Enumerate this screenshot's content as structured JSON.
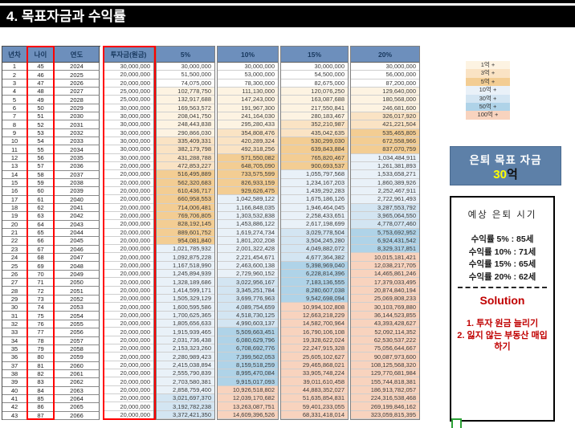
{
  "title": "4. 목표자금과 수익률",
  "table": {
    "left_headers": [
      "년차",
      "나이",
      "연도"
    ],
    "main_headers": [
      "투자금(원금)",
      "5%",
      "10%",
      "15%",
      "20%"
    ],
    "rows": [
      [
        "1",
        "45",
        "2024",
        "30,000,000",
        "30,000,000",
        "30,000,000",
        "30,000,000",
        "30,000,000"
      ],
      [
        "2",
        "46",
        "2025",
        "20,000,000",
        "51,500,000",
        "53,000,000",
        "54,500,000",
        "56,000,000"
      ],
      [
        "3",
        "47",
        "2026",
        "20,000,000",
        "74,075,000",
        "78,300,000",
        "82,675,000",
        "87,200,000"
      ],
      [
        "4",
        "48",
        "2027",
        "25,000,000",
        "102,778,750",
        "111,130,000",
        "120,076,250",
        "129,640,000"
      ],
      [
        "5",
        "49",
        "2028",
        "25,000,000",
        "132,917,688",
        "147,243,000",
        "163,087,688",
        "180,568,000"
      ],
      [
        "6",
        "50",
        "2029",
        "30,000,000",
        "169,563,572",
        "191,967,300",
        "217,550,841",
        "246,681,600"
      ],
      [
        "7",
        "51",
        "2030",
        "30,000,000",
        "208,041,750",
        "241,164,030",
        "280,183,467",
        "326,017,920"
      ],
      [
        "8",
        "52",
        "2031",
        "30,000,000",
        "248,443,838",
        "295,280,433",
        "352,210,987",
        "421,221,504"
      ],
      [
        "9",
        "53",
        "2032",
        "30,000,000",
        "290,866,030",
        "354,808,476",
        "435,042,635",
        "535,465,805"
      ],
      [
        "10",
        "54",
        "2033",
        "30,000,000",
        "335,409,331",
        "420,289,324",
        "530,299,030",
        "672,558,966"
      ],
      [
        "11",
        "55",
        "2034",
        "30,000,000",
        "382,179,798",
        "492,318,256",
        "639,843,884",
        "837,070,759"
      ],
      [
        "12",
        "56",
        "2035",
        "30,000,000",
        "431,288,788",
        "571,550,082",
        "765,820,467",
        "1,034,484,911"
      ],
      [
        "13",
        "57",
        "2036",
        "20,000,000",
        "472,853,227",
        "648,705,090",
        "900,693,537",
        "1,261,381,893"
      ],
      [
        "14",
        "58",
        "2037",
        "20,000,000",
        "516,495,889",
        "733,575,599",
        "1,055,797,568",
        "1,533,658,271"
      ],
      [
        "15",
        "59",
        "2038",
        "20,000,000",
        "562,320,683",
        "826,933,159",
        "1,234,167,203",
        "1,860,389,926"
      ],
      [
        "16",
        "60",
        "2039",
        "20,000,000",
        "610,436,717",
        "929,626,475",
        "1,439,292,283",
        "2,252,467,911"
      ],
      [
        "17",
        "61",
        "2040",
        "20,000,000",
        "660,958,553",
        "1,042,589,122",
        "1,675,186,126",
        "2,722,961,493"
      ],
      [
        "18",
        "62",
        "2041",
        "20,000,000",
        "714,006,481",
        "1,166,848,035",
        "1,946,464,045",
        "3,287,553,792"
      ],
      [
        "19",
        "63",
        "2042",
        "20,000,000",
        "769,706,805",
        "1,303,532,838",
        "2,258,433,651",
        "3,965,064,550"
      ],
      [
        "20",
        "64",
        "2043",
        "20,000,000",
        "828,192,145",
        "1,453,886,122",
        "2,617,198,699",
        "4,778,077,460"
      ],
      [
        "21",
        "65",
        "2044",
        "20,000,000",
        "889,601,752",
        "1,619,274,734",
        "3,029,778,504",
        "5,753,692,952"
      ],
      [
        "22",
        "66",
        "2045",
        "20,000,000",
        "954,081,840",
        "1,801,202,208",
        "3,504,245,280",
        "6,924,431,542"
      ],
      [
        "23",
        "67",
        "2046",
        "20,000,000",
        "1,021,785,932",
        "2,001,322,428",
        "4,049,882,072",
        "8,329,317,851"
      ],
      [
        "24",
        "68",
        "2047",
        "20,000,000",
        "1,092,875,228",
        "2,221,454,671",
        "4,677,364,382",
        "10,015,181,421"
      ],
      [
        "25",
        "69",
        "2048",
        "20,000,000",
        "1,167,518,990",
        "2,463,600,138",
        "5,398,969,040",
        "12,038,217,705"
      ],
      [
        "26",
        "70",
        "2049",
        "20,000,000",
        "1,245,894,939",
        "2,729,960,152",
        "6,228,814,396",
        "14,465,861,246"
      ],
      [
        "27",
        "71",
        "2050",
        "20,000,000",
        "1,328,189,686",
        "3,022,956,167",
        "7,183,136,555",
        "17,379,033,495"
      ],
      [
        "28",
        "72",
        "2051",
        "20,000,000",
        "1,414,599,171",
        "3,345,251,784",
        "8,280,607,038",
        "20,874,840,194"
      ],
      [
        "29",
        "73",
        "2052",
        "20,000,000",
        "1,505,329,129",
        "3,699,776,963",
        "9,542,698,094",
        "25,069,808,233"
      ],
      [
        "30",
        "74",
        "2053",
        "20,000,000",
        "1,600,595,586",
        "4,089,754,659",
        "10,994,102,808",
        "30,103,769,880"
      ],
      [
        "31",
        "75",
        "2054",
        "20,000,000",
        "1,700,625,365",
        "4,518,730,125",
        "12,663,218,229",
        "36,144,523,855"
      ],
      [
        "32",
        "76",
        "2055",
        "20,000,000",
        "1,805,656,633",
        "4,990,603,137",
        "14,582,700,964",
        "43,393,428,627"
      ],
      [
        "33",
        "77",
        "2056",
        "20,000,000",
        "1,915,939,465",
        "5,509,663,451",
        "16,790,106,108",
        "52,092,114,352"
      ],
      [
        "34",
        "78",
        "2057",
        "20,000,000",
        "2,031,736,438",
        "6,080,629,796",
        "19,328,622,024",
        "62,530,537,222"
      ],
      [
        "35",
        "79",
        "2058",
        "20,000,000",
        "2,153,323,260",
        "6,708,692,776",
        "22,247,915,328",
        "75,056,644,667"
      ],
      [
        "36",
        "80",
        "2059",
        "20,000,000",
        "2,280,989,423",
        "7,399,562,053",
        "25,605,102,627",
        "90,087,973,600"
      ],
      [
        "37",
        "81",
        "2060",
        "20,000,000",
        "2,415,038,894",
        "8,159,518,259",
        "29,465,868,021",
        "108,125,568,320"
      ],
      [
        "38",
        "82",
        "2061",
        "20,000,000",
        "2,555,790,839",
        "8,995,470,084",
        "33,905,748,224",
        "129,770,681,984"
      ],
      [
        "39",
        "83",
        "2062",
        "20,000,000",
        "2,703,580,381",
        "9,915,017,093",
        "39,011,610,458",
        "155,744,818,381"
      ],
      [
        "40",
        "84",
        "2063",
        "20,000,000",
        "2,858,759,400",
        "10,926,518,802",
        "44,883,352,027",
        "186,913,782,057"
      ],
      [
        "41",
        "85",
        "2064",
        "20,000,000",
        "3,021,697,370",
        "12,039,170,682",
        "51,635,854,831",
        "224,316,538,468"
      ],
      [
        "42",
        "86",
        "2065",
        "20,000,000",
        "3,192,782,238",
        "13,263,087,751",
        "59,401,233,055",
        "269,199,846,162"
      ],
      [
        "43",
        "87",
        "2066",
        "20,000,000",
        "3,372,421,350",
        "14,609,396,526",
        "68,331,418,014",
        "323,059,815,395"
      ]
    ]
  },
  "legend": {
    "tiers": [
      {
        "label": "1억 +",
        "min": 100000000,
        "color": "#FDF3E2"
      },
      {
        "label": "3억 +",
        "min": 300000000,
        "color": "#FAE3C4"
      },
      {
        "label": "5억 +",
        "min": 500000000,
        "color": "#F3CD93"
      },
      {
        "label": "10억 +",
        "min": 1000000000,
        "color": "#E9F1F8"
      },
      {
        "label": "30억 +",
        "min": 3000000000,
        "color": "#D3E5F2"
      },
      {
        "label": "50억 +",
        "min": 5000000000,
        "color": "#AFD3E8"
      },
      {
        "label": "100억 +",
        "min": 10000000000,
        "color": "#F8D3BE"
      }
    ]
  },
  "goal_box": {
    "title": "은퇴 목표 자금",
    "amount_number": "30",
    "amount_unit": "억"
  },
  "timing_box": {
    "title": "예상 은퇴 시기",
    "lines": [
      "수익률 5% : 85세",
      "수익률 10% : 71세",
      "수익률 15% : 65세",
      "수익률 20% : 62세"
    ]
  },
  "solution_box": {
    "title": "Solution",
    "items": [
      "1. 투자 원금 늘리기",
      "2. 잃지 않는 부동산 매입하기"
    ]
  },
  "colors": {
    "header_bg": "#6D8FBC",
    "header_text": "#17375D",
    "goal_box_bg": "#5D80A8",
    "goal_amount": "#FFFF00",
    "solution_red": "#C00000",
    "highlight_outline": "#FF0000",
    "green_marker": "#2BA136"
  }
}
